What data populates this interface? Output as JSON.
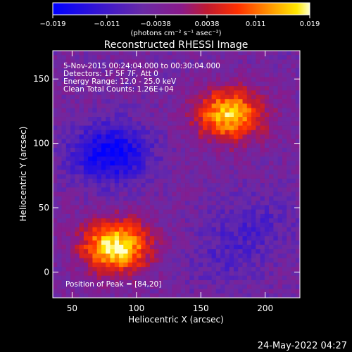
{
  "chart_data": {
    "type": "heatmap",
    "title": "Reconstructed RHESSI Image",
    "xlabel": "Heliocentric X (arcsec)",
    "ylabel": "Heliocentric Y (arcsec)",
    "xlim": [
      35,
      227
    ],
    "ylim": [
      -20,
      172
    ],
    "xticks": [
      50,
      100,
      150,
      200
    ],
    "yticks": [
      0,
      50,
      100,
      150
    ],
    "grid": false,
    "colorbar": {
      "position": "top",
      "ticks": [
        -0.019,
        -0.011,
        -0.0038,
        0.0038,
        0.011,
        0.019
      ],
      "tick_labels": [
        "−0.019",
        "−0.011",
        "−0.0038",
        "0.0038",
        "0.011",
        "0.019"
      ],
      "range": [
        -0.019,
        0.019
      ],
      "unit_label": "(photons cm⁻² s⁻¹ asec⁻²)"
    },
    "annotations": [
      "5-Nov-2015 00:24:04.000 to 00:30:04.000",
      "Detectors: 1F 5F 7F, Att 0",
      "Energy Range: 12.0 - 25.0 keV",
      "Clean    Total Counts: 1.26E+04",
      "Position of Peak = [84,20]"
    ],
    "features": [
      {
        "kind": "max",
        "x": 84,
        "y": 20,
        "value": 0.019
      },
      {
        "kind": "max",
        "x": 172,
        "y": 122,
        "value": 0.016
      },
      {
        "kind": "min",
        "x": 80,
        "y": 92,
        "value": -0.019
      },
      {
        "kind": "min",
        "x": 168,
        "y": 10,
        "value": -0.008
      },
      {
        "kind": "min",
        "x": 190,
        "y": 38,
        "value": -0.009
      }
    ],
    "grid_resolution": 56
  },
  "footer": {
    "date_stamp": "24-May-2022 04:27"
  }
}
